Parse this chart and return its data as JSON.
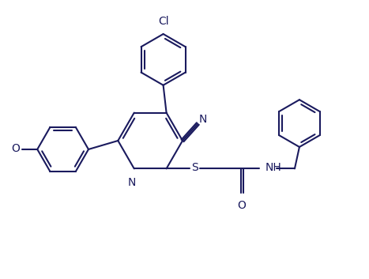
{
  "line_color": "#1a1a5e",
  "bg_color": "#ffffff",
  "line_width": 1.5,
  "font_size": 10,
  "figsize": [
    4.67,
    3.53
  ],
  "dpi": 100,
  "xlim": [
    0,
    9.34
  ],
  "ylim": [
    0,
    7.06
  ]
}
